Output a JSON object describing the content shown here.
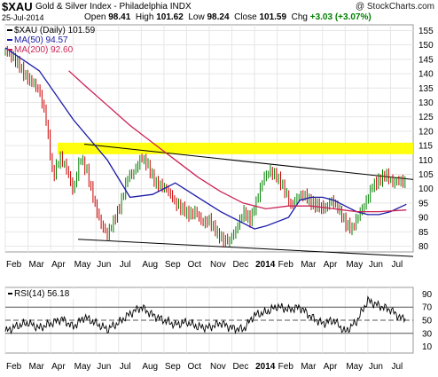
{
  "header": {
    "symbol": "$XAU",
    "name": "Gold & Silver Index - Philadelphia INDX",
    "copyright": "@ StockCharts.com",
    "date": "25-Jul-2014",
    "open_label": "Open",
    "open": "98.41",
    "high_label": "High",
    "high": "101.62",
    "low_label": "Low",
    "low": "98.24",
    "close_label": "Close",
    "close": "101.59",
    "chg_label": "Chg",
    "chg": "+3.03 (+3.07%)"
  },
  "colors": {
    "price": "#008000",
    "price_down": "#cc0000",
    "ma50": "#1a1aa8",
    "ma200": "#cc2255",
    "band": "#ffff00",
    "rsi": "#000000",
    "up_text": "#008000"
  },
  "chart_data": [
    {
      "type": "line",
      "title": "",
      "legend": [
        "$XAU (Daily) 101.59",
        "MA(50) 94.57",
        "MA(200) 92.60"
      ],
      "legend_placement": "top-left",
      "ylim": [
        78,
        157
      ],
      "yticks": [
        80,
        85,
        90,
        95,
        100,
        105,
        110,
        115,
        120,
        125,
        130,
        135,
        140,
        145,
        150,
        155
      ],
      "xticks": [
        "Feb",
        "Mar",
        "Apr",
        "May",
        "Jun",
        "Jul",
        "Aug",
        "Sep",
        "Oct",
        "Nov",
        "Dec",
        "2014",
        "Feb",
        "Mar",
        "Apr",
        "May",
        "Jun",
        "Jul"
      ],
      "grid": true,
      "highlight_band": [
        112,
        116
      ],
      "series": [
        {
          "name": "$XAU (Daily)",
          "x": [
            0,
            0.3,
            0.6,
            0.9,
            1.2,
            1.5,
            1.8,
            2.1,
            2.4,
            2.7,
            3.0,
            3.3,
            3.6,
            3.9,
            4.2,
            4.5,
            4.8,
            5.1,
            5.4,
            5.7,
            6.0,
            6.3,
            6.6,
            6.9,
            7.2,
            7.5,
            7.8,
            8.1,
            8.4,
            8.7,
            9.0,
            9.3,
            9.6,
            9.9,
            10.2,
            10.5,
            10.8,
            11.1,
            11.4,
            11.7,
            12.0,
            12.3,
            12.6,
            12.9,
            13.2,
            13.5,
            13.8,
            14.1,
            14.4,
            14.7,
            15.0,
            15.3,
            15.6,
            15.9,
            16.2,
            16.5,
            16.8,
            17.1,
            17.4,
            17.7
          ],
          "values": [
            148,
            146,
            143,
            139,
            137,
            134,
            124,
            104,
            111,
            107,
            99,
            111,
            106,
            96,
            88,
            84,
            89,
            95,
            104,
            106,
            111,
            108,
            102,
            101,
            99,
            95,
            93,
            91,
            92,
            88,
            89,
            85,
            82,
            82,
            86,
            92,
            89,
            96,
            104,
            106,
            104,
            100,
            94,
            97,
            98,
            95,
            94,
            93,
            96,
            93,
            88,
            86,
            91,
            95,
            101,
            103,
            105,
            102,
            103,
            101.59
          ]
        },
        {
          "name": "MA(50)",
          "x": [
            0,
            1.5,
            3.0,
            4.5,
            5.5,
            6.5,
            7.5,
            8.5,
            9.5,
            10.5,
            11.0,
            11.5,
            12.5,
            13.0,
            13.5,
            14.0,
            14.5,
            15.0,
            15.5,
            16.0,
            16.5,
            17.0,
            17.7
          ],
          "values": [
            149,
            141,
            124,
            110,
            97,
            98,
            102,
            97,
            92,
            88,
            86,
            87,
            90,
            96,
            97,
            97,
            96,
            94,
            92,
            91,
            91,
            92,
            94.57
          ]
        },
        {
          "name": "MA(200)",
          "x": [
            2.8,
            3.5,
            4.5,
            5.5,
            6.5,
            7.5,
            8.5,
            9.5,
            10.5,
            11.5,
            12.5,
            13.5,
            14.5,
            15.5,
            16.5,
            17.7
          ],
          "values": [
            141,
            136,
            129,
            122,
            116,
            110,
            104,
            99,
            95,
            93,
            94,
            94,
            93,
            92,
            92,
            92.6
          ]
        }
      ]
    },
    {
      "type": "line",
      "title": "",
      "legend": [
        "RSI(14) 56.18"
      ],
      "legend_placement": "top-left",
      "ylim": [
        0,
        100
      ],
      "yticks": [
        10,
        30,
        50,
        70,
        90
      ],
      "reference_lines": [
        30,
        50,
        70
      ],
      "xticks": [
        "Feb",
        "Mar",
        "Apr",
        "May",
        "Jun",
        "Jul",
        "Aug",
        "Sep",
        "Oct",
        "Nov",
        "Dec",
        "2014",
        "Feb",
        "Mar",
        "Apr",
        "May",
        "Jun",
        "Jul"
      ],
      "series": [
        {
          "name": "RSI(14)",
          "x": [
            0,
            0.5,
            1.0,
            1.5,
            2.0,
            2.5,
            3.0,
            3.5,
            4.0,
            4.5,
            5.0,
            5.5,
            6.0,
            6.5,
            7.0,
            7.5,
            8.0,
            8.5,
            9.0,
            9.5,
            10.0,
            10.5,
            11.0,
            11.5,
            12.0,
            12.5,
            13.0,
            13.5,
            14.0,
            14.5,
            15.0,
            15.5,
            16.0,
            16.5,
            17.0,
            17.5,
            17.7
          ],
          "values": [
            33,
            41,
            46,
            38,
            45,
            52,
            40,
            55,
            45,
            36,
            46,
            60,
            70,
            58,
            50,
            43,
            47,
            40,
            39,
            46,
            38,
            36,
            58,
            62,
            71,
            66,
            70,
            55,
            45,
            50,
            32,
            48,
            80,
            72,
            66,
            52,
            56.18
          ]
        }
      ]
    }
  ]
}
